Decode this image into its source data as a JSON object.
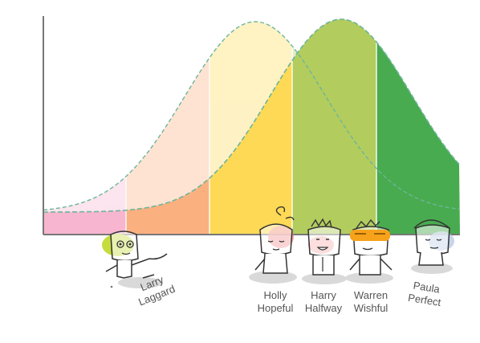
{
  "characters": [
    {
      "first": "Larry",
      "last": "Laggard",
      "accent": "#c5dc3c"
    },
    {
      "first": "Holly",
      "last": "Hopeful",
      "accent": "#f08a8a"
    },
    {
      "first": "Harry",
      "last": "Halfway",
      "accent": "#f6a3a3"
    },
    {
      "first": "Warren",
      "last": "Wishful",
      "accent": "#f7a21b"
    },
    {
      "first": "Paula",
      "last": "Perfect",
      "accent": "#b9cbe6"
    }
  ],
  "colors": {
    "band_1": "#f7b5cf",
    "band_2": "#fbb07f",
    "band_3": "#fed955",
    "band_4": "#b2cc5e",
    "band_5": "#48ab4f",
    "curve_line": "#6cb69a",
    "axis": "#777777",
    "text": "#555555"
  }
}
